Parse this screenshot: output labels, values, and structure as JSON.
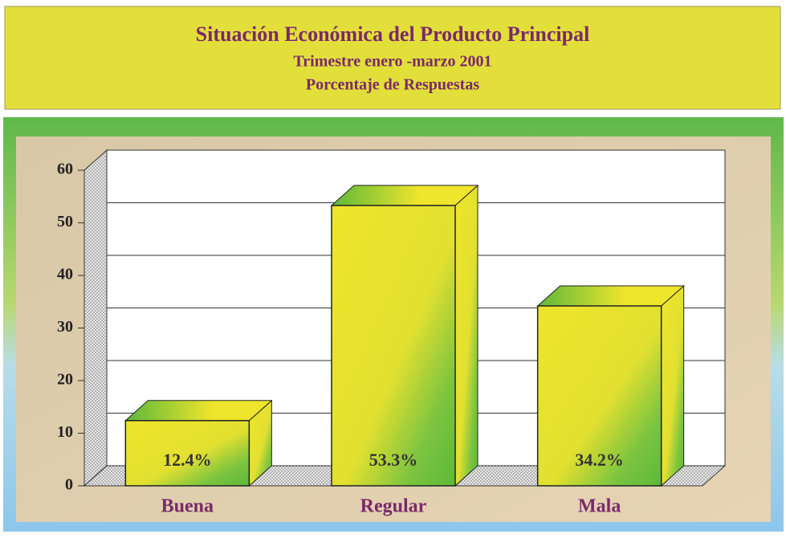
{
  "chart_data": {
    "type": "bar3d",
    "title": "Situación Económica del Producto Principal",
    "subtitle": [
      "Trimestre enero -marzo 2001",
      "Porcentaje de Respuestas"
    ],
    "categories": [
      "Buena",
      "Regular",
      "Mala"
    ],
    "values": [
      12.4,
      53.3,
      34.2
    ],
    "value_labels": [
      "12.4%",
      "53.3%",
      "34.2%"
    ],
    "color": "#efe52c",
    "ylim": [
      0,
      60
    ],
    "yticks": [
      0,
      10,
      20,
      30,
      40,
      50,
      60
    ],
    "grid": true
  }
}
